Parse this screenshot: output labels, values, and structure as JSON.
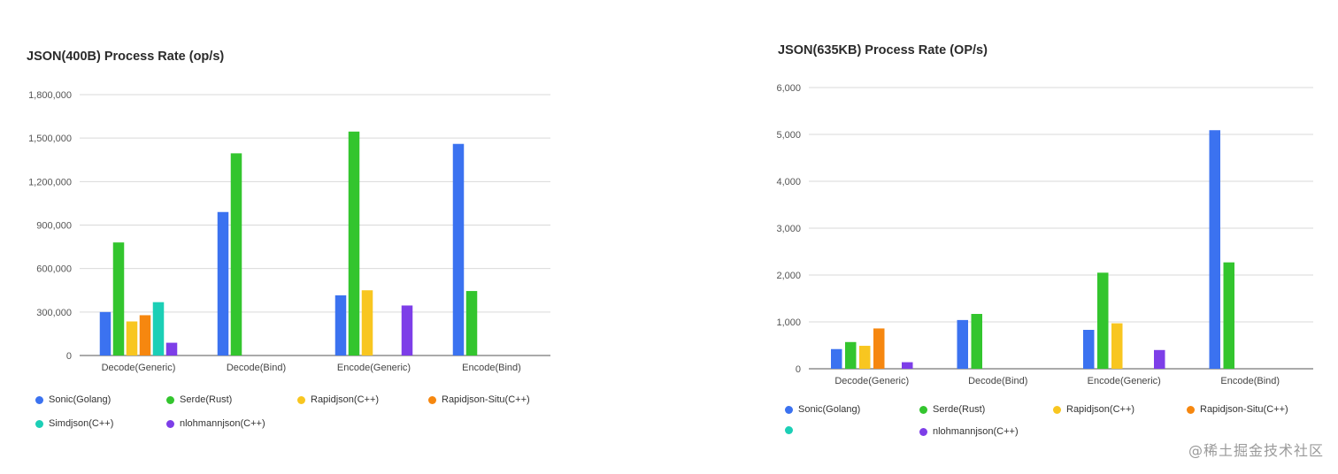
{
  "chart_data": [
    {
      "type": "bar",
      "title": "JSON(400B) Process Rate (op/s)",
      "categories": [
        "Decode(Generic)",
        "Decode(Bind)",
        "Encode(Generic)",
        "Encode(Bind)"
      ],
      "ylim": [
        0,
        1800000
      ],
      "yticks": [
        0,
        300000,
        600000,
        900000,
        1200000,
        1500000,
        1800000
      ],
      "ytick_labels": [
        "0",
        "300,000",
        "600,000",
        "900,000",
        "1,200,000",
        "1,500,000",
        "1,800,000"
      ],
      "grid": true,
      "legend_position": "bottom",
      "series": [
        {
          "name": "Sonic(Golang)",
          "color": "#3b72f0",
          "values": [
            300000,
            990000,
            415000,
            1460000
          ]
        },
        {
          "name": "Serde(Rust)",
          "color": "#33c52e",
          "values": [
            780000,
            1395000,
            1545000,
            445000
          ]
        },
        {
          "name": "Rapidjson(C++)",
          "color": "#f8c620",
          "values": [
            235000,
            null,
            450000,
            null
          ]
        },
        {
          "name": "Rapidjson-Situ(C++)",
          "color": "#f6870f",
          "values": [
            278000,
            null,
            null,
            null
          ]
        },
        {
          "name": "Simdjson(C++)",
          "color": "#1ccfb6",
          "values": [
            368000,
            null,
            null,
            null
          ]
        },
        {
          "name": "nlohmannjson(C++)",
          "color": "#7d3ee8",
          "values": [
            88000,
            null,
            345000,
            null
          ]
        }
      ]
    },
    {
      "type": "bar",
      "title": "JSON(635KB) Process Rate (OP/s)",
      "categories": [
        "Decode(Generic)",
        "Decode(Bind)",
        "Encode(Generic)",
        "Encode(Bind)"
      ],
      "ylim": [
        0,
        6000
      ],
      "yticks": [
        0,
        1000,
        2000,
        3000,
        4000,
        5000,
        6000
      ],
      "ytick_labels": [
        "0",
        "1,000",
        "2,000",
        "3,000",
        "4,000",
        "5,000",
        "6,000"
      ],
      "grid": true,
      "legend_position": "bottom",
      "series": [
        {
          "name": "Sonic(Golang)",
          "color": "#3b72f0",
          "values": [
            420,
            1040,
            830,
            5090
          ]
        },
        {
          "name": "Serde(Rust)",
          "color": "#33c52e",
          "values": [
            570,
            1170,
            2050,
            2270
          ]
        },
        {
          "name": "Rapidjson(C++)",
          "color": "#f8c620",
          "values": [
            490,
            null,
            970,
            null
          ]
        },
        {
          "name": "Rapidjson-Situ(C++)",
          "color": "#f6870f",
          "values": [
            860,
            null,
            null,
            null
          ]
        },
        {
          "name": "",
          "color": "#1ccfb6",
          "values": [
            null,
            null,
            null,
            null
          ]
        },
        {
          "name": "nlohmannjson(C++)",
          "color": "#7d3ee8",
          "values": [
            140,
            null,
            400,
            null
          ]
        }
      ]
    }
  ],
  "watermark": "@稀土掘金技术社区"
}
